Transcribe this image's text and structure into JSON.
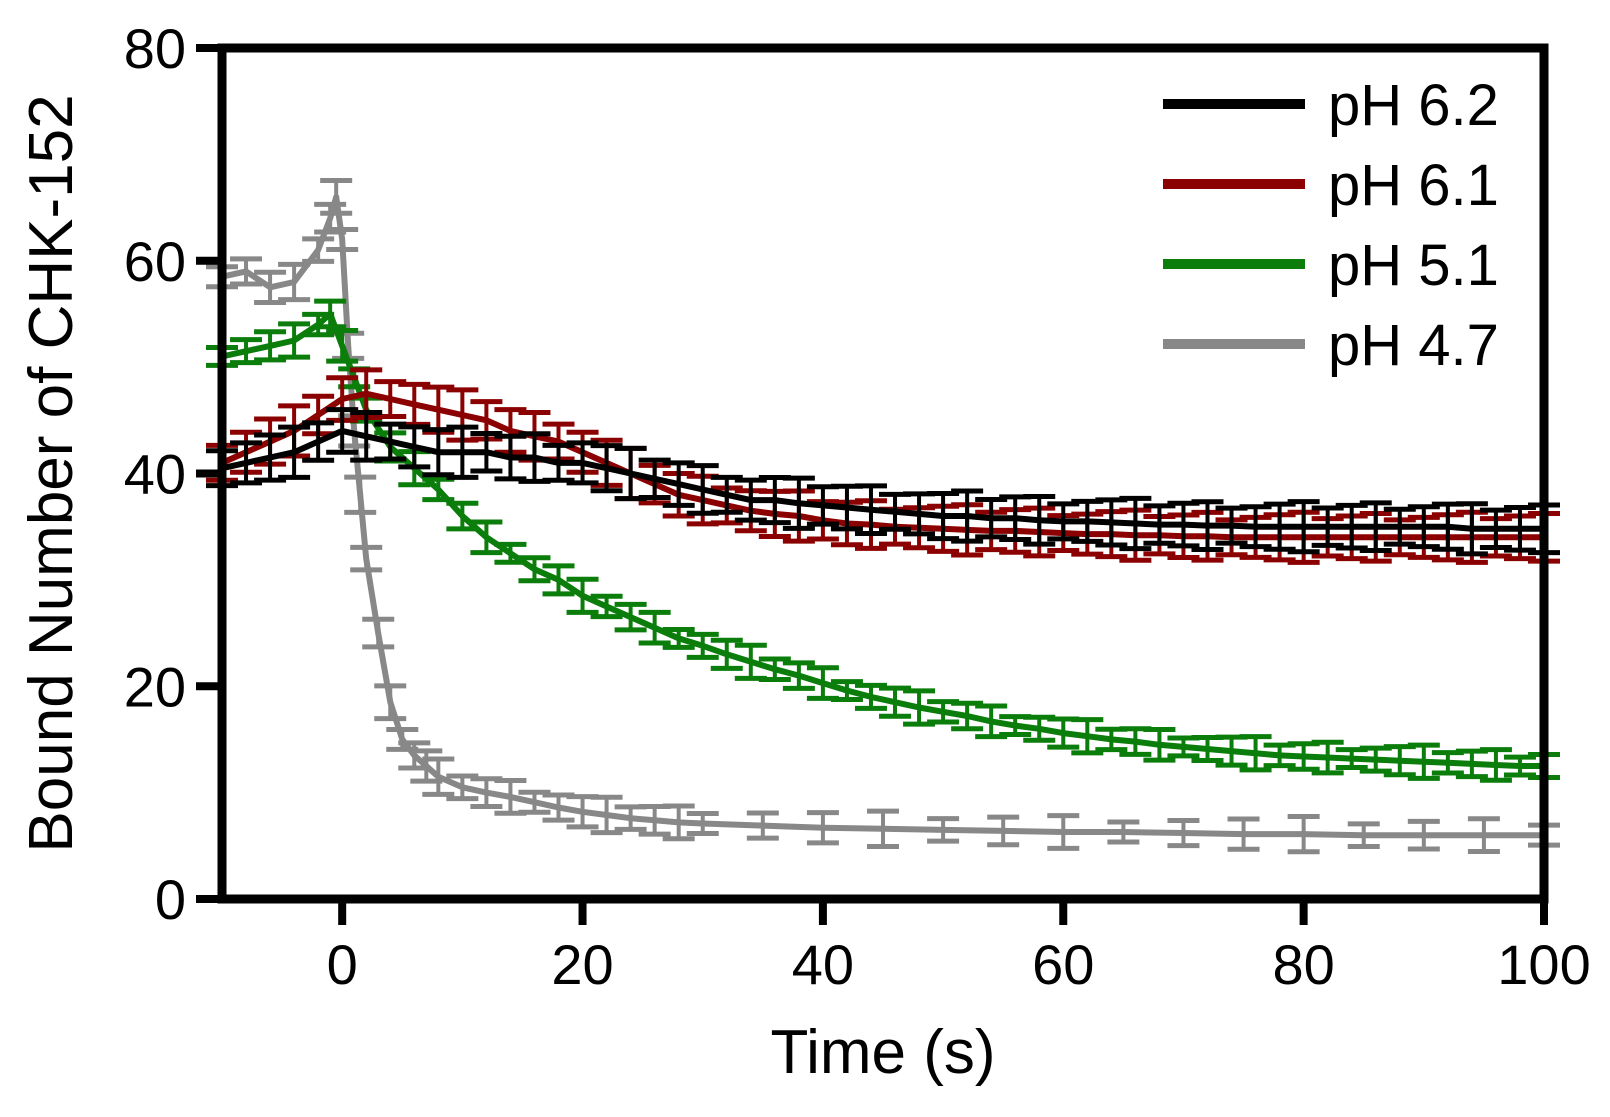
{
  "chart_data": {
    "type": "line",
    "title": "",
    "xlabel": "Time (s)",
    "ylabel": "Bound Number of CHK-152",
    "xlim": [
      -10,
      100
    ],
    "ylim": [
      0,
      80
    ],
    "xticks": [
      0,
      20,
      40,
      60,
      80,
      100
    ],
    "yticks": [
      0,
      20,
      40,
      60,
      80
    ],
    "legend_position": "top-right",
    "series": [
      {
        "name": "pH 6.2",
        "color": "#000000",
        "x": [
          -10,
          -8,
          -6,
          -4,
          -2,
          0,
          2,
          4,
          6,
          8,
          10,
          12,
          14,
          16,
          18,
          20,
          22,
          24,
          26,
          28,
          30,
          32,
          34,
          36,
          38,
          40,
          42,
          44,
          46,
          48,
          50,
          52,
          54,
          56,
          58,
          60,
          62,
          64,
          66,
          68,
          70,
          72,
          74,
          76,
          78,
          80,
          82,
          84,
          86,
          88,
          90,
          92,
          94,
          96,
          98,
          100
        ],
        "y": [
          40.5,
          41,
          41.5,
          42,
          43,
          44,
          43.5,
          43,
          42.5,
          42,
          42,
          42,
          41.5,
          41.5,
          41,
          41,
          40.5,
          40,
          39.5,
          39,
          38.5,
          38,
          37.5,
          37.5,
          37.2,
          37,
          36.8,
          36.6,
          36.4,
          36.2,
          36,
          36,
          35.8,
          35.8,
          35.6,
          35.5,
          35.5,
          35.4,
          35.3,
          35.2,
          35.2,
          35.1,
          35.1,
          35,
          35,
          35,
          35,
          35,
          35,
          35,
          35,
          35,
          34.8,
          34.8,
          34.8,
          34.8
        ],
        "error": 2
      },
      {
        "name": "pH 6.1",
        "color": "#8b0000",
        "x": [
          -10,
          -8,
          -6,
          -4,
          -2,
          0,
          2,
          4,
          6,
          8,
          10,
          12,
          14,
          16,
          18,
          20,
          22,
          24,
          26,
          28,
          30,
          32,
          34,
          36,
          38,
          40,
          42,
          44,
          46,
          48,
          50,
          52,
          54,
          56,
          58,
          60,
          62,
          64,
          66,
          68,
          70,
          72,
          74,
          76,
          78,
          80,
          82,
          84,
          86,
          88,
          90,
          92,
          94,
          96,
          98,
          100
        ],
        "y": [
          41,
          42,
          43,
          44,
          45.5,
          47,
          47.5,
          47,
          46.5,
          46,
          45.5,
          45,
          44,
          43.5,
          43,
          42,
          41,
          40,
          39,
          38,
          37.5,
          37,
          36.5,
          36.2,
          36,
          35.6,
          35.3,
          35.2,
          35,
          34.9,
          34.8,
          34.7,
          34.6,
          34.6,
          34.5,
          34.4,
          34.3,
          34.3,
          34.2,
          34.2,
          34.1,
          34.1,
          34,
          34,
          34,
          34,
          34,
          34,
          34,
          34,
          34,
          34,
          34,
          34,
          34,
          34
        ],
        "error": 2
      },
      {
        "name": "pH 5.1",
        "color": "#0a7d0a",
        "x": [
          -10,
          -8,
          -6,
          -4,
          -2,
          -1,
          0,
          1,
          2,
          4,
          6,
          8,
          10,
          12,
          14,
          16,
          18,
          20,
          22,
          24,
          26,
          28,
          30,
          32,
          34,
          36,
          38,
          40,
          42,
          44,
          46,
          48,
          50,
          52,
          54,
          56,
          58,
          60,
          62,
          64,
          66,
          68,
          70,
          72,
          74,
          76,
          78,
          80,
          82,
          84,
          86,
          88,
          90,
          92,
          94,
          96,
          98,
          100
        ],
        "y": [
          51,
          51.5,
          52,
          52.5,
          54,
          55,
          52,
          49,
          46,
          42.5,
          40.5,
          38.5,
          36,
          34,
          32.5,
          31,
          30,
          28.5,
          27.5,
          26.5,
          25.5,
          24.5,
          23.8,
          23,
          22.3,
          21.6,
          21,
          20.3,
          19.6,
          19,
          18.5,
          18,
          17.6,
          17.2,
          16.7,
          16.3,
          16,
          15.6,
          15.3,
          15,
          14.8,
          14.5,
          14.3,
          14.1,
          13.9,
          13.7,
          13.5,
          13.4,
          13.3,
          13.2,
          13.1,
          13,
          12.9,
          12.8,
          12.7,
          12.6,
          12.5,
          12.5
        ],
        "error": 1.2
      },
      {
        "name": "pH 4.7",
        "color": "#888888",
        "x": [
          -10,
          -8,
          -6,
          -4,
          -2,
          -1,
          -0.5,
          0,
          0.5,
          1,
          1.5,
          2,
          3,
          4,
          5,
          6,
          7,
          8,
          10,
          12,
          14,
          16,
          18,
          20,
          22,
          24,
          26,
          28,
          30,
          35,
          40,
          45,
          50,
          55,
          60,
          65,
          70,
          75,
          80,
          85,
          90,
          95,
          100
        ],
        "y": [
          58.5,
          59,
          57.5,
          58,
          61,
          64,
          66,
          62,
          52,
          44,
          38,
          32,
          25,
          18.5,
          15,
          13.5,
          12.5,
          11.5,
          10.5,
          10,
          9.6,
          9.1,
          8.6,
          8.2,
          7.9,
          7.6,
          7.4,
          7.2,
          7.1,
          6.9,
          6.7,
          6.6,
          6.5,
          6.4,
          6.3,
          6.3,
          6.2,
          6.1,
          6.1,
          6,
          6,
          6,
          6
        ],
        "error": 1.3
      }
    ]
  }
}
